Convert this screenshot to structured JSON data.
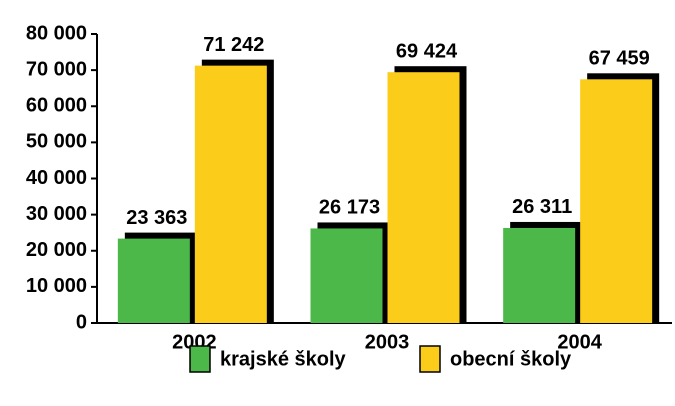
{
  "chart_data": {
    "type": "bar",
    "categories": [
      "2002",
      "2003",
      "2004"
    ],
    "series": [
      {
        "name": "krajské školy",
        "color": "#4cb84a",
        "values": [
          23363,
          26173,
          26311
        ],
        "value_labels": [
          "23 363",
          "26 173",
          "26 311"
        ]
      },
      {
        "name": "obecní školy",
        "color": "#fccc1a",
        "values": [
          71242,
          69424,
          67459
        ],
        "value_labels": [
          "71 242",
          "69 424",
          "67 459"
        ]
      }
    ],
    "ylim": [
      0,
      80000
    ],
    "yticks": [
      0,
      {
        "value": 10000,
        "label": "10 000"
      },
      {
        "value": 20000,
        "label": "20 000"
      },
      {
        "value": 30000,
        "label": "30 000"
      },
      {
        "value": 40000,
        "label": "40 000"
      },
      {
        "value": 50000,
        "label": "50 000"
      },
      {
        "value": 60000,
        "label": "60 000"
      },
      {
        "value": 70000,
        "label": "70 000"
      },
      {
        "value": 80000,
        "label": "80 000"
      }
    ],
    "legend": "bottom"
  }
}
